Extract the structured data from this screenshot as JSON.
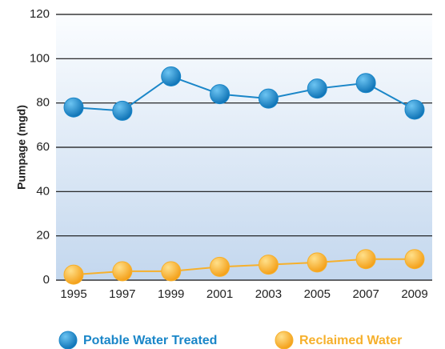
{
  "chart_data": {
    "type": "line",
    "y_label": "Pumpage (mgd)",
    "categories": [
      "1995",
      "1997",
      "1999",
      "2001",
      "2003",
      "2005",
      "2007",
      "2009"
    ],
    "series": [
      {
        "name": "Potable Water Treated",
        "color": "#1a86c8",
        "values": [
          78,
          76.5,
          92,
          84,
          82,
          86.5,
          89,
          77
        ]
      },
      {
        "name": "Reclaimed Water",
        "color": "#f6b02c",
        "values": [
          2.5,
          4,
          4,
          6,
          7,
          8,
          9.5,
          9.5
        ]
      }
    ],
    "ylim": [
      0,
      120
    ],
    "yticks": [
      0,
      20,
      40,
      60,
      80,
      100,
      120
    ],
    "grid": true
  }
}
